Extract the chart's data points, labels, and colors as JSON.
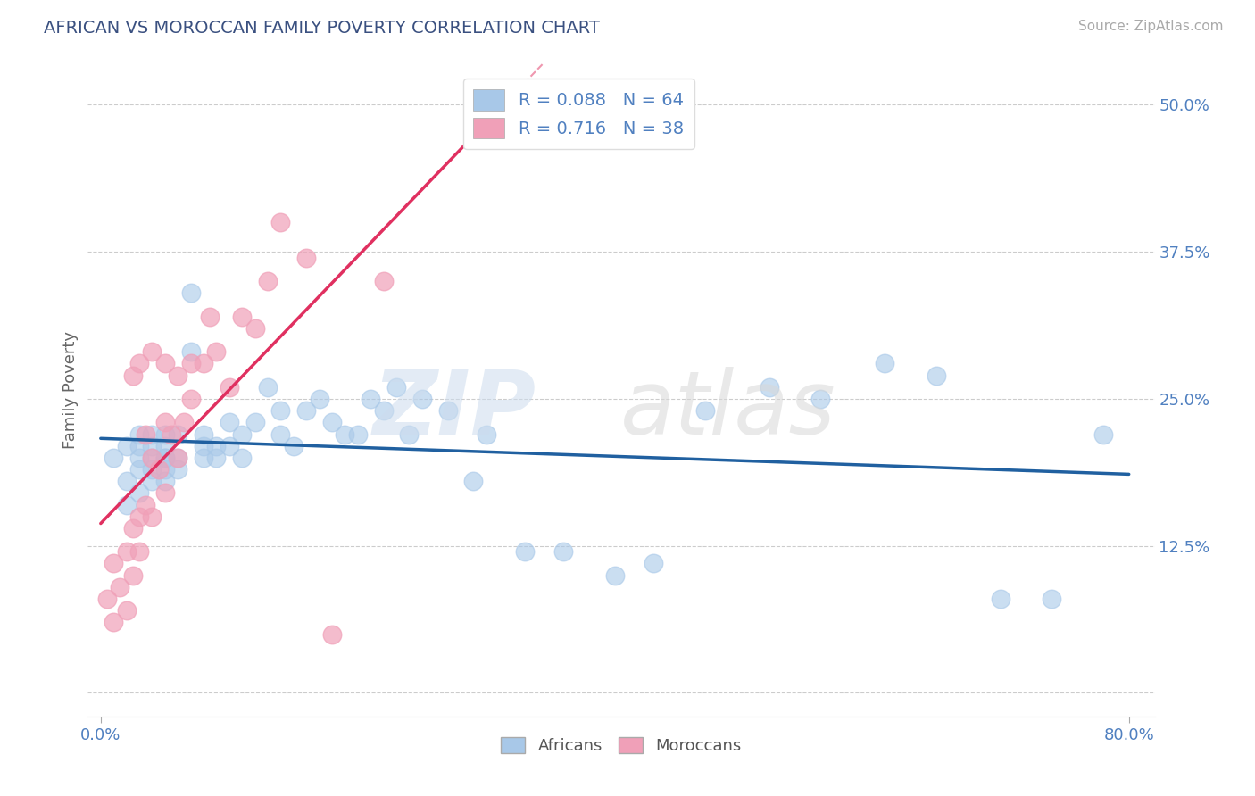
{
  "title": "AFRICAN VS MOROCCAN FAMILY POVERTY CORRELATION CHART",
  "source": "Source: ZipAtlas.com",
  "ylabel": "Family Poverty",
  "xlim": [
    -0.01,
    0.82
  ],
  "ylim": [
    -0.02,
    0.535
  ],
  "ytick_positions": [
    0.0,
    0.125,
    0.25,
    0.375,
    0.5
  ],
  "ytick_labels": [
    "",
    "12.5%",
    "25.0%",
    "37.5%",
    "50.0%"
  ],
  "R_african": 0.088,
  "N_african": 64,
  "R_moroccan": 0.716,
  "N_moroccan": 38,
  "blue_color": "#a8c8e8",
  "pink_color": "#f0a0b8",
  "blue_line_color": "#2060a0",
  "pink_line_color": "#e03060",
  "title_color": "#3a5080",
  "tick_color": "#5080c0",
  "axis_label_color": "#666666",
  "grid_color": "#cccccc",
  "africans_x": [
    0.01,
    0.02,
    0.02,
    0.02,
    0.03,
    0.03,
    0.03,
    0.03,
    0.03,
    0.04,
    0.04,
    0.04,
    0.04,
    0.04,
    0.05,
    0.05,
    0.05,
    0.05,
    0.05,
    0.05,
    0.06,
    0.06,
    0.06,
    0.07,
    0.07,
    0.08,
    0.08,
    0.08,
    0.09,
    0.09,
    0.1,
    0.1,
    0.11,
    0.11,
    0.12,
    0.13,
    0.14,
    0.14,
    0.15,
    0.16,
    0.17,
    0.18,
    0.19,
    0.2,
    0.21,
    0.22,
    0.23,
    0.24,
    0.25,
    0.27,
    0.29,
    0.3,
    0.33,
    0.36,
    0.4,
    0.43,
    0.47,
    0.52,
    0.56,
    0.61,
    0.65,
    0.7,
    0.74,
    0.78
  ],
  "africans_y": [
    0.2,
    0.18,
    0.21,
    0.16,
    0.19,
    0.22,
    0.2,
    0.17,
    0.21,
    0.19,
    0.22,
    0.2,
    0.18,
    0.21,
    0.2,
    0.19,
    0.21,
    0.22,
    0.18,
    0.2,
    0.22,
    0.2,
    0.19,
    0.34,
    0.29,
    0.22,
    0.21,
    0.2,
    0.21,
    0.2,
    0.23,
    0.21,
    0.22,
    0.2,
    0.23,
    0.26,
    0.24,
    0.22,
    0.21,
    0.24,
    0.25,
    0.23,
    0.22,
    0.22,
    0.25,
    0.24,
    0.26,
    0.22,
    0.25,
    0.24,
    0.18,
    0.22,
    0.12,
    0.12,
    0.1,
    0.11,
    0.24,
    0.26,
    0.25,
    0.28,
    0.27,
    0.08,
    0.08,
    0.22
  ],
  "moroccans_x": [
    0.005,
    0.01,
    0.01,
    0.015,
    0.02,
    0.02,
    0.025,
    0.025,
    0.025,
    0.03,
    0.03,
    0.03,
    0.035,
    0.035,
    0.04,
    0.04,
    0.04,
    0.045,
    0.05,
    0.05,
    0.05,
    0.055,
    0.06,
    0.06,
    0.065,
    0.07,
    0.07,
    0.08,
    0.085,
    0.09,
    0.1,
    0.11,
    0.12,
    0.13,
    0.14,
    0.16,
    0.18,
    0.22
  ],
  "moroccans_y": [
    0.08,
    0.06,
    0.11,
    0.09,
    0.07,
    0.12,
    0.1,
    0.14,
    0.27,
    0.12,
    0.15,
    0.28,
    0.16,
    0.22,
    0.15,
    0.2,
    0.29,
    0.19,
    0.17,
    0.23,
    0.28,
    0.22,
    0.2,
    0.27,
    0.23,
    0.28,
    0.25,
    0.28,
    0.32,
    0.29,
    0.26,
    0.32,
    0.31,
    0.35,
    0.4,
    0.37,
    0.05,
    0.35
  ]
}
